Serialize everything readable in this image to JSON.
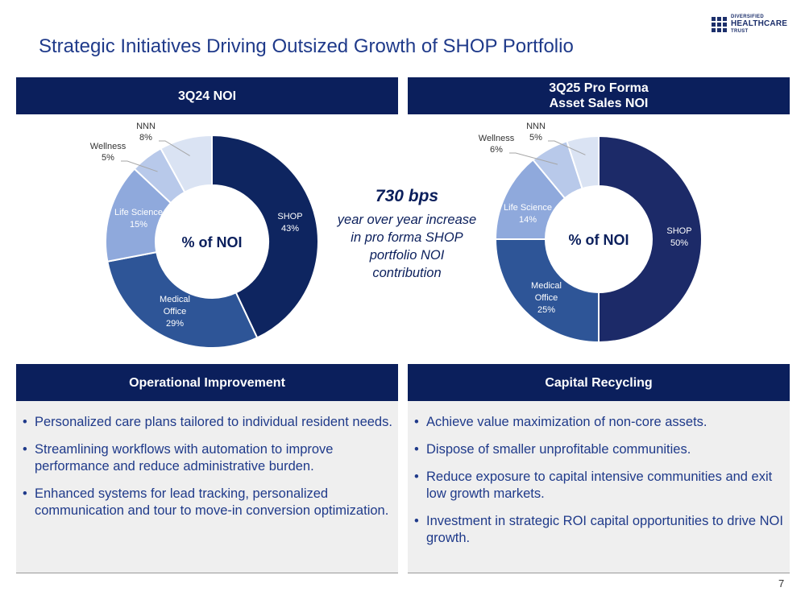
{
  "title": "Strategic Initiatives Driving Outsized Growth of SHOP Portfolio",
  "logo": {
    "line1": "DIVERSIFIED",
    "line2": "HEALTHCARE",
    "line3": "TRUST"
  },
  "headers": {
    "left_chart": "3Q24 NOI",
    "right_chart_line1": "3Q25 Pro Forma",
    "right_chart_line2": "Asset Sales NOI",
    "operational": "Operational Improvement",
    "capital": "Capital Recycling"
  },
  "center_label": "% of NOI",
  "callout": {
    "value": "730 bps",
    "line1": "year over year increase",
    "line2": "in pro forma SHOP",
    "line3": "portfolio NOI",
    "line4": "contribution"
  },
  "colors": {
    "navy": "#0b1f5c",
    "shop_left": "#0e2560",
    "shop_right": "#1c2a68",
    "medical": "#2e5597",
    "life_science": "#8fa9dc",
    "wellness": "#b8c9ea",
    "nnn": "#dae3f3",
    "text_blue": "#1f3a8a"
  },
  "chart_data": [
    {
      "type": "pie",
      "categories": [
        "SHOP",
        "Medical Office",
        "Life Science",
        "Wellness",
        "NNN"
      ],
      "values": [
        43,
        29,
        15,
        5,
        8
      ],
      "labels": {
        "shop": [
          "SHOP",
          "43%"
        ],
        "medical": [
          "Medical",
          "Office",
          "29%"
        ],
        "life": [
          "Life Science",
          "15%"
        ],
        "wellness": [
          "Wellness",
          "5%"
        ],
        "nnn": [
          "NNN",
          "8%"
        ]
      }
    },
    {
      "type": "pie",
      "categories": [
        "SHOP",
        "Medical Office",
        "Life Science",
        "Wellness",
        "NNN"
      ],
      "values": [
        50,
        25,
        14,
        6,
        5
      ],
      "labels": {
        "shop": [
          "SHOP",
          "50%"
        ],
        "medical": [
          "Medical",
          "Office",
          "25%"
        ],
        "life": [
          "Life Science",
          "14%"
        ],
        "wellness": [
          "Wellness",
          "6%"
        ],
        "nnn": [
          "NNN",
          "5%"
        ]
      }
    }
  ],
  "operational_items": [
    "Personalized care plans tailored to individual resident needs.",
    "Streamlining workflows with automation to improve performance and reduce administrative burden.",
    "Enhanced systems for lead tracking, personalized communication and tour to move-in conversion optimization."
  ],
  "capital_items": [
    "Achieve value maximization of non-core assets.",
    "Dispose of smaller unprofitable communities.",
    "Reduce exposure to capital intensive communities and exit low growth markets.",
    "Investment in strategic ROI capital opportunities to drive NOI growth."
  ],
  "page_number": "7"
}
